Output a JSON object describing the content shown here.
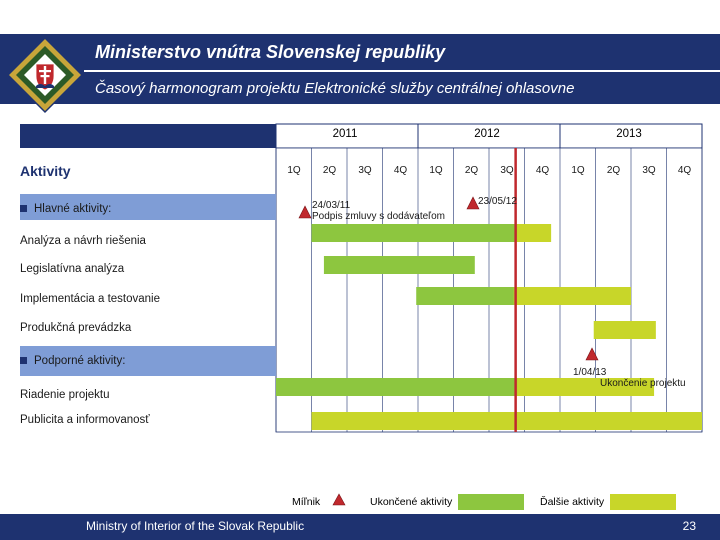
{
  "header": {
    "title": "Ministerstvo vnútra Slovenskej republiky",
    "subtitle": "Časový harmonogram projektu Elektronické služby centrálnej ohlasovne"
  },
  "timeline": {
    "years": [
      "2011",
      "2012",
      "2013"
    ],
    "quarters": [
      "1Q",
      "2Q",
      "3Q",
      "4Q",
      "1Q",
      "2Q",
      "3Q",
      "4Q",
      "1Q",
      "2Q",
      "3Q",
      "4Q"
    ],
    "activities_header": "Aktivity"
  },
  "activities": {
    "main_heading": "Hlavné aktivity:",
    "items": [
      "Analýza a návrh riešenia",
      "Legislatívna analýza",
      "Implementácia a testovanie",
      "Produkčná prevádzka"
    ],
    "support_heading": "Podporné aktivity:",
    "support_items": [
      "Riadenie projektu",
      "Publicita a informovanosť"
    ]
  },
  "milestones": {
    "m1_date": "24/03/11",
    "m1_text": "Podpis zmluvy s dodávateľom",
    "m2_date": "23/05/12",
    "m3_date": "1/04/13",
    "m3_text": "Ukončenie projektu"
  },
  "legend": {
    "milestone": "Míľnik",
    "completed": "Ukončené aktivity",
    "further": "Ďalšie aktivity"
  },
  "footer": {
    "text": "Ministry of Interior of the Slovak Republic",
    "page": "23"
  },
  "colors": {
    "navy": "#1e3270",
    "completed_green": "#8dc63f",
    "further_yellow": "#c8d629",
    "milestone_red": "#c0282d"
  },
  "bars": [
    {
      "activity": "Analýza a návrh riešenia",
      "start_q": 1.0,
      "end_q": 7.75
    },
    {
      "activity": "Legislatívna analýza",
      "start_q": 1.35,
      "end_q": 5.6
    },
    {
      "activity": "Implementácia a testovanie",
      "start_q": 3.95,
      "end_q": 10.0
    },
    {
      "activity": "Produkčná prevádzka",
      "start_q": 8.95,
      "end_q": 10.7
    },
    {
      "activity": "Riadenie projektu",
      "start_q": 0.0,
      "end_q": 10.65
    },
    {
      "activity": "Publicita a informovanosť",
      "start_q": 1.0,
      "end_q": 12.0
    }
  ],
  "today_q": 6.75
}
